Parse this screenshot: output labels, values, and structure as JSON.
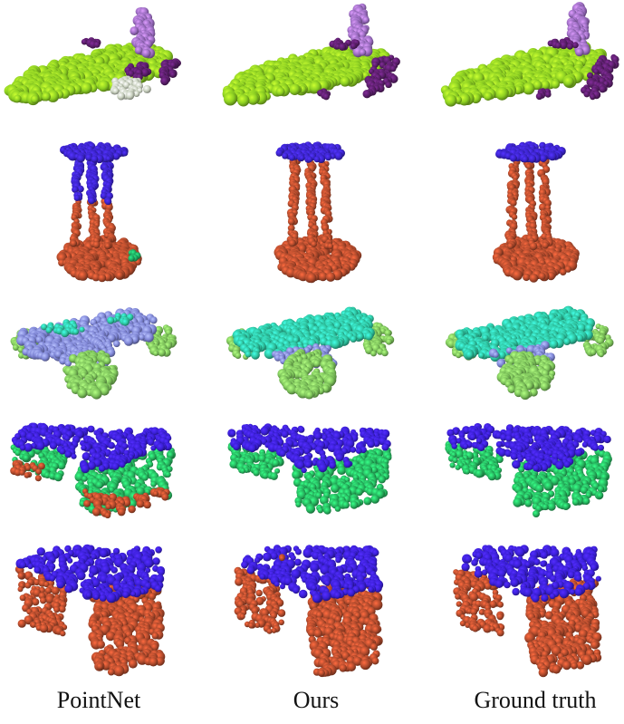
{
  "columns": [
    {
      "label": "PointNet"
    },
    {
      "label": "Ours"
    },
    {
      "label": "Ground truth"
    }
  ],
  "rows": [
    {
      "shape": "airplane",
      "palette": {
        "main": "#8ccf22",
        "tail": "#9a6cc0",
        "wing": "#5a1e6a",
        "other": "#c9d1bf"
      }
    },
    {
      "shape": "table",
      "palette": {
        "top": "#3a23c9",
        "leg": "#b04a2c",
        "other": "#1fa860"
      }
    },
    {
      "shape": "car",
      "palette": {
        "body": "#2ec4a0",
        "wheel": "#7cc25a",
        "roof": "#7f86d6"
      }
    },
    {
      "shape": "couch",
      "palette": {
        "top": "#3a1fd6",
        "side": "#26b45e",
        "base": "#b04a2c"
      }
    },
    {
      "shape": "bench",
      "palette": {
        "top": "#3a1fd6",
        "leg": "#b04a2c"
      }
    }
  ]
}
